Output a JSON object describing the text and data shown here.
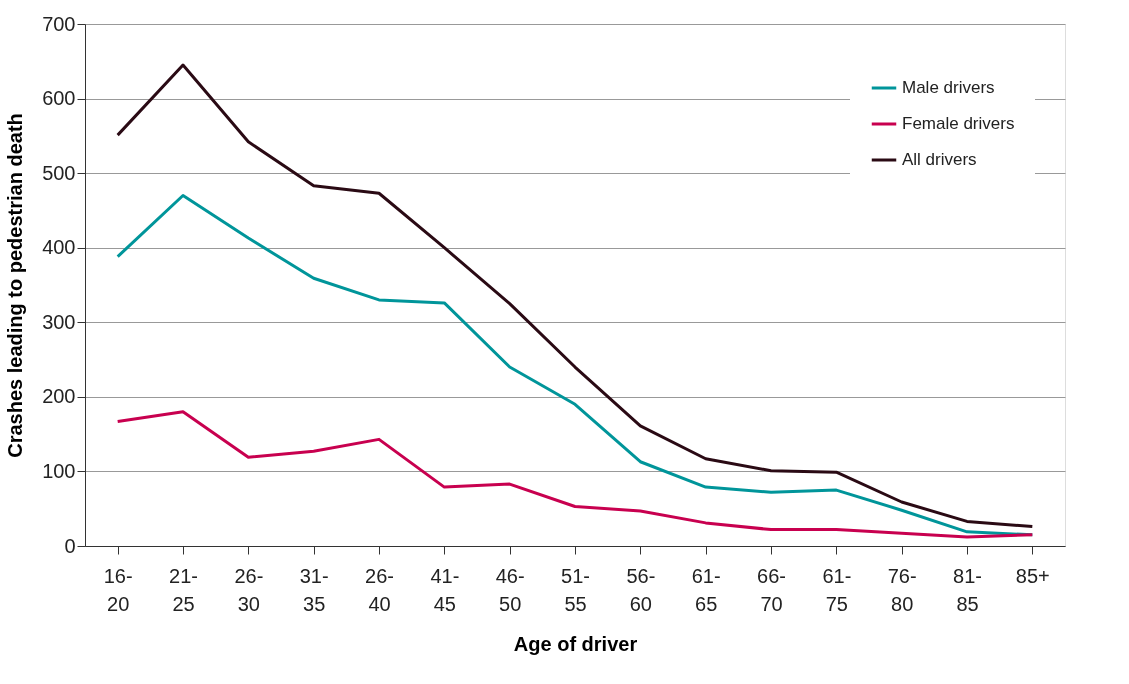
{
  "chart_data": {
    "type": "line",
    "xlabel": "Age of driver",
    "ylabel": "Crashes leading to pedestrian death",
    "categories": [
      "16-20",
      "21-25",
      "26-30",
      "31-35",
      "26-40",
      "41-45",
      "46-50",
      "51-55",
      "56-60",
      "61-65",
      "66-70",
      "61-75",
      "76-80",
      "81-85",
      "85+"
    ],
    "series": [
      {
        "name": "Male drivers",
        "color": "#00959a",
        "values": [
          388,
          470,
          413,
          359,
          330,
          326,
          240,
          190,
          113,
          79,
          72,
          75,
          48,
          19,
          15
        ]
      },
      {
        "name": "Female drivers",
        "color": "#c8004f",
        "values": [
          167,
          180,
          119,
          127,
          143,
          79,
          83,
          53,
          47,
          31,
          22,
          22,
          17,
          12,
          15
        ]
      },
      {
        "name": "All drivers",
        "color": "#2a0a14",
        "values": [
          551,
          645,
          542,
          483,
          473,
          400,
          325,
          240,
          161,
          117,
          101,
          99,
          59,
          33,
          26
        ]
      }
    ],
    "ylim": [
      0,
      700
    ],
    "yticks": [
      0,
      100,
      200,
      300,
      400,
      500,
      600,
      700
    ],
    "grid": "y",
    "legend": "top right",
    "marker": "none",
    "line_style": "solid"
  }
}
